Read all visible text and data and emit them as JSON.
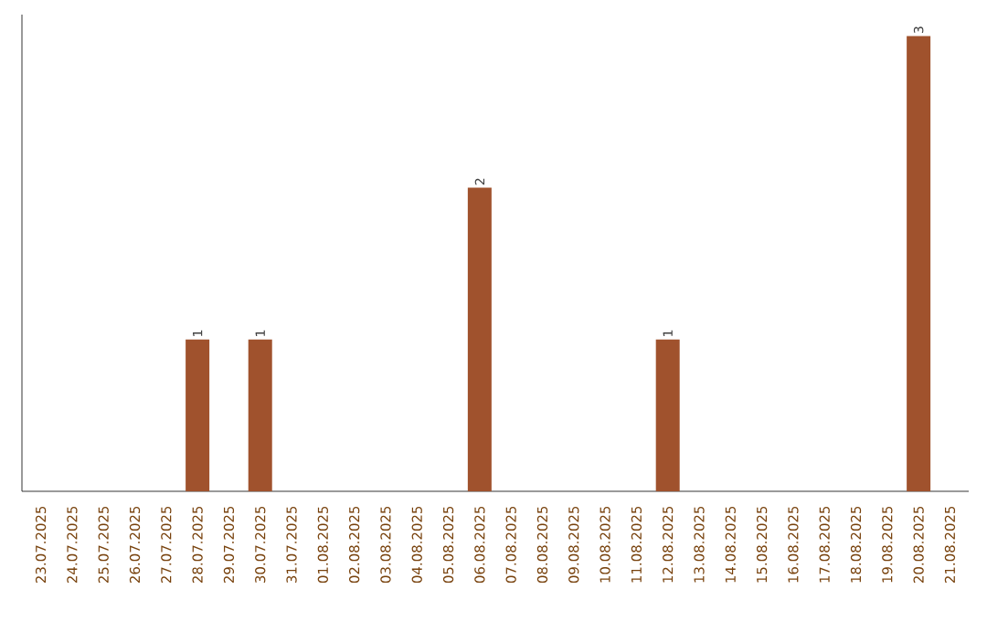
{
  "chart_data": {
    "type": "bar",
    "color": "#a0522d",
    "categories": [
      "23.07.2025",
      "24.07.2025",
      "25.07.2025",
      "26.07.2025",
      "27.07.2025",
      "28.07.2025",
      "29.07.2025",
      "30.07.2025",
      "31.07.2025",
      "01.08.2025",
      "02.08.2025",
      "03.08.2025",
      "04.08.2025",
      "05.08.2025",
      "06.08.2025",
      "07.08.2025",
      "08.08.2025",
      "09.08.2025",
      "10.08.2025",
      "11.08.2025",
      "12.08.2025",
      "13.08.2025",
      "14.08.2025",
      "15.08.2025",
      "16.08.2025",
      "17.08.2025",
      "18.08.2025",
      "19.08.2025",
      "20.08.2025",
      "21.08.2025"
    ],
    "values": [
      0,
      0,
      0,
      0,
      0,
      1,
      0,
      1,
      0,
      0,
      0,
      0,
      0,
      0,
      2,
      0,
      0,
      0,
      0,
      0,
      1,
      0,
      0,
      0,
      0,
      0,
      0,
      0,
      3,
      0
    ],
    "value_labels": [
      null,
      null,
      null,
      null,
      null,
      "1",
      null,
      "1",
      null,
      null,
      null,
      null,
      null,
      null,
      "2",
      null,
      null,
      null,
      null,
      null,
      "1",
      null,
      null,
      null,
      null,
      null,
      null,
      null,
      "3",
      null
    ],
    "grid": false
  }
}
